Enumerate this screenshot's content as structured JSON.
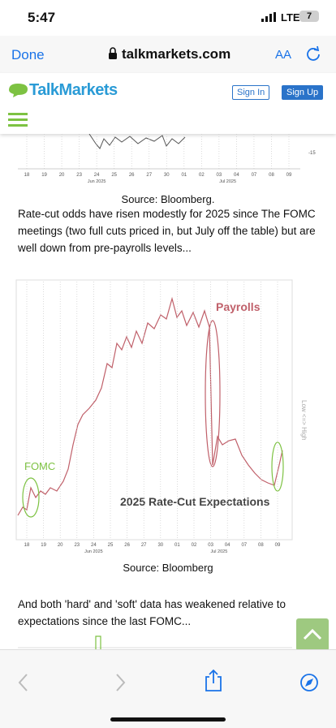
{
  "status_bar": {
    "time": "5:47",
    "network": "LTE",
    "battery": "7"
  },
  "browser": {
    "done": "Done",
    "url": "talkmarkets.com",
    "text_size": "AA"
  },
  "site_header": {
    "logo": "TalkMarkets",
    "sign_in": "Sign In",
    "sign_up": "Sign Up"
  },
  "article": {
    "chart_1": {
      "x_labels": [
        "18",
        "19",
        "20",
        "23",
        "24",
        "25",
        "26",
        "27",
        "30",
        "01",
        "02",
        "03",
        "04",
        "07",
        "08",
        "09"
      ],
      "month_labels": [
        "Jun 2025",
        "Jul 2025"
      ],
      "axis_label": "-15"
    },
    "caption_1": "Source: Bloomberg.",
    "paragraph_1": "Rate-cut odds have risen modestly for 2025 since The FOMC meetings (two full cuts priced in, but July off the table) but are well down from pre-payrolls levels...",
    "chart_2": {
      "title": "2025 Rate-Cut Expectations",
      "fomc": "FOMC",
      "payrolls": "Payrolls",
      "side_label": "Low <=> High",
      "x_labels": [
        "18",
        "19",
        "20",
        "23",
        "24",
        "25",
        "26",
        "27",
        "30",
        "01",
        "02",
        "03",
        "04",
        "07",
        "08",
        "09"
      ],
      "month_labels": [
        "Jun 2025",
        "Jul 2025"
      ]
    },
    "caption_2": "Source: Bloomberg",
    "paragraph_2": "And both 'hard' and 'soft' data has weakened relative to expectations since the last FOMC..."
  }
}
